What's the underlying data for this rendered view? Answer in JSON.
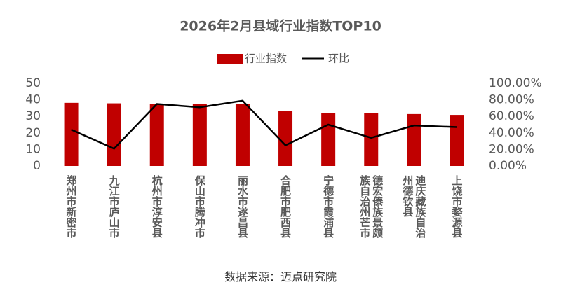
{
  "chart_data": {
    "type": "bar_line",
    "title": "2026年2月县域行业指数TOP10",
    "source": "数据来源：迈点研究院",
    "categories": [
      "郑州市新密市",
      "九江市庐山市",
      "杭州市淳安县",
      "保山市腾冲市",
      "丽水市遂昌县",
      "合肥市肥西县",
      "宁德市霞浦县",
      "德宏傣族景颇族自治州芒市",
      "迪庆藏族自治州德钦县",
      "上饶市婺源县"
    ],
    "series": [
      {
        "name": "行业指数",
        "type": "bar",
        "color": "#c00000",
        "values": [
          38.2,
          37.9,
          37.6,
          37.5,
          37.4,
          33.1,
          32.2,
          31.8,
          31.4,
          30.9
        ]
      },
      {
        "name": "环比",
        "type": "line",
        "axis": "y2",
        "color": "#000000",
        "values": [
          44,
          21,
          75,
          71,
          79,
          25,
          50,
          34,
          49,
          47
        ]
      }
    ],
    "ylim": [
      0,
      50
    ],
    "yticks": [
      0,
      10,
      20,
      30,
      40,
      50
    ],
    "y2lim": [
      0,
      100
    ],
    "y2ticks": [
      {
        "value": 0,
        "label": "0.00%"
      },
      {
        "value": 20,
        "label": "20.00%"
      },
      {
        "value": 40,
        "label": "40.00%"
      },
      {
        "value": 60,
        "label": "60.00%"
      },
      {
        "value": 80,
        "label": "80.00%"
      },
      {
        "value": 100,
        "label": "100.00%"
      }
    ],
    "legend": "top"
  }
}
